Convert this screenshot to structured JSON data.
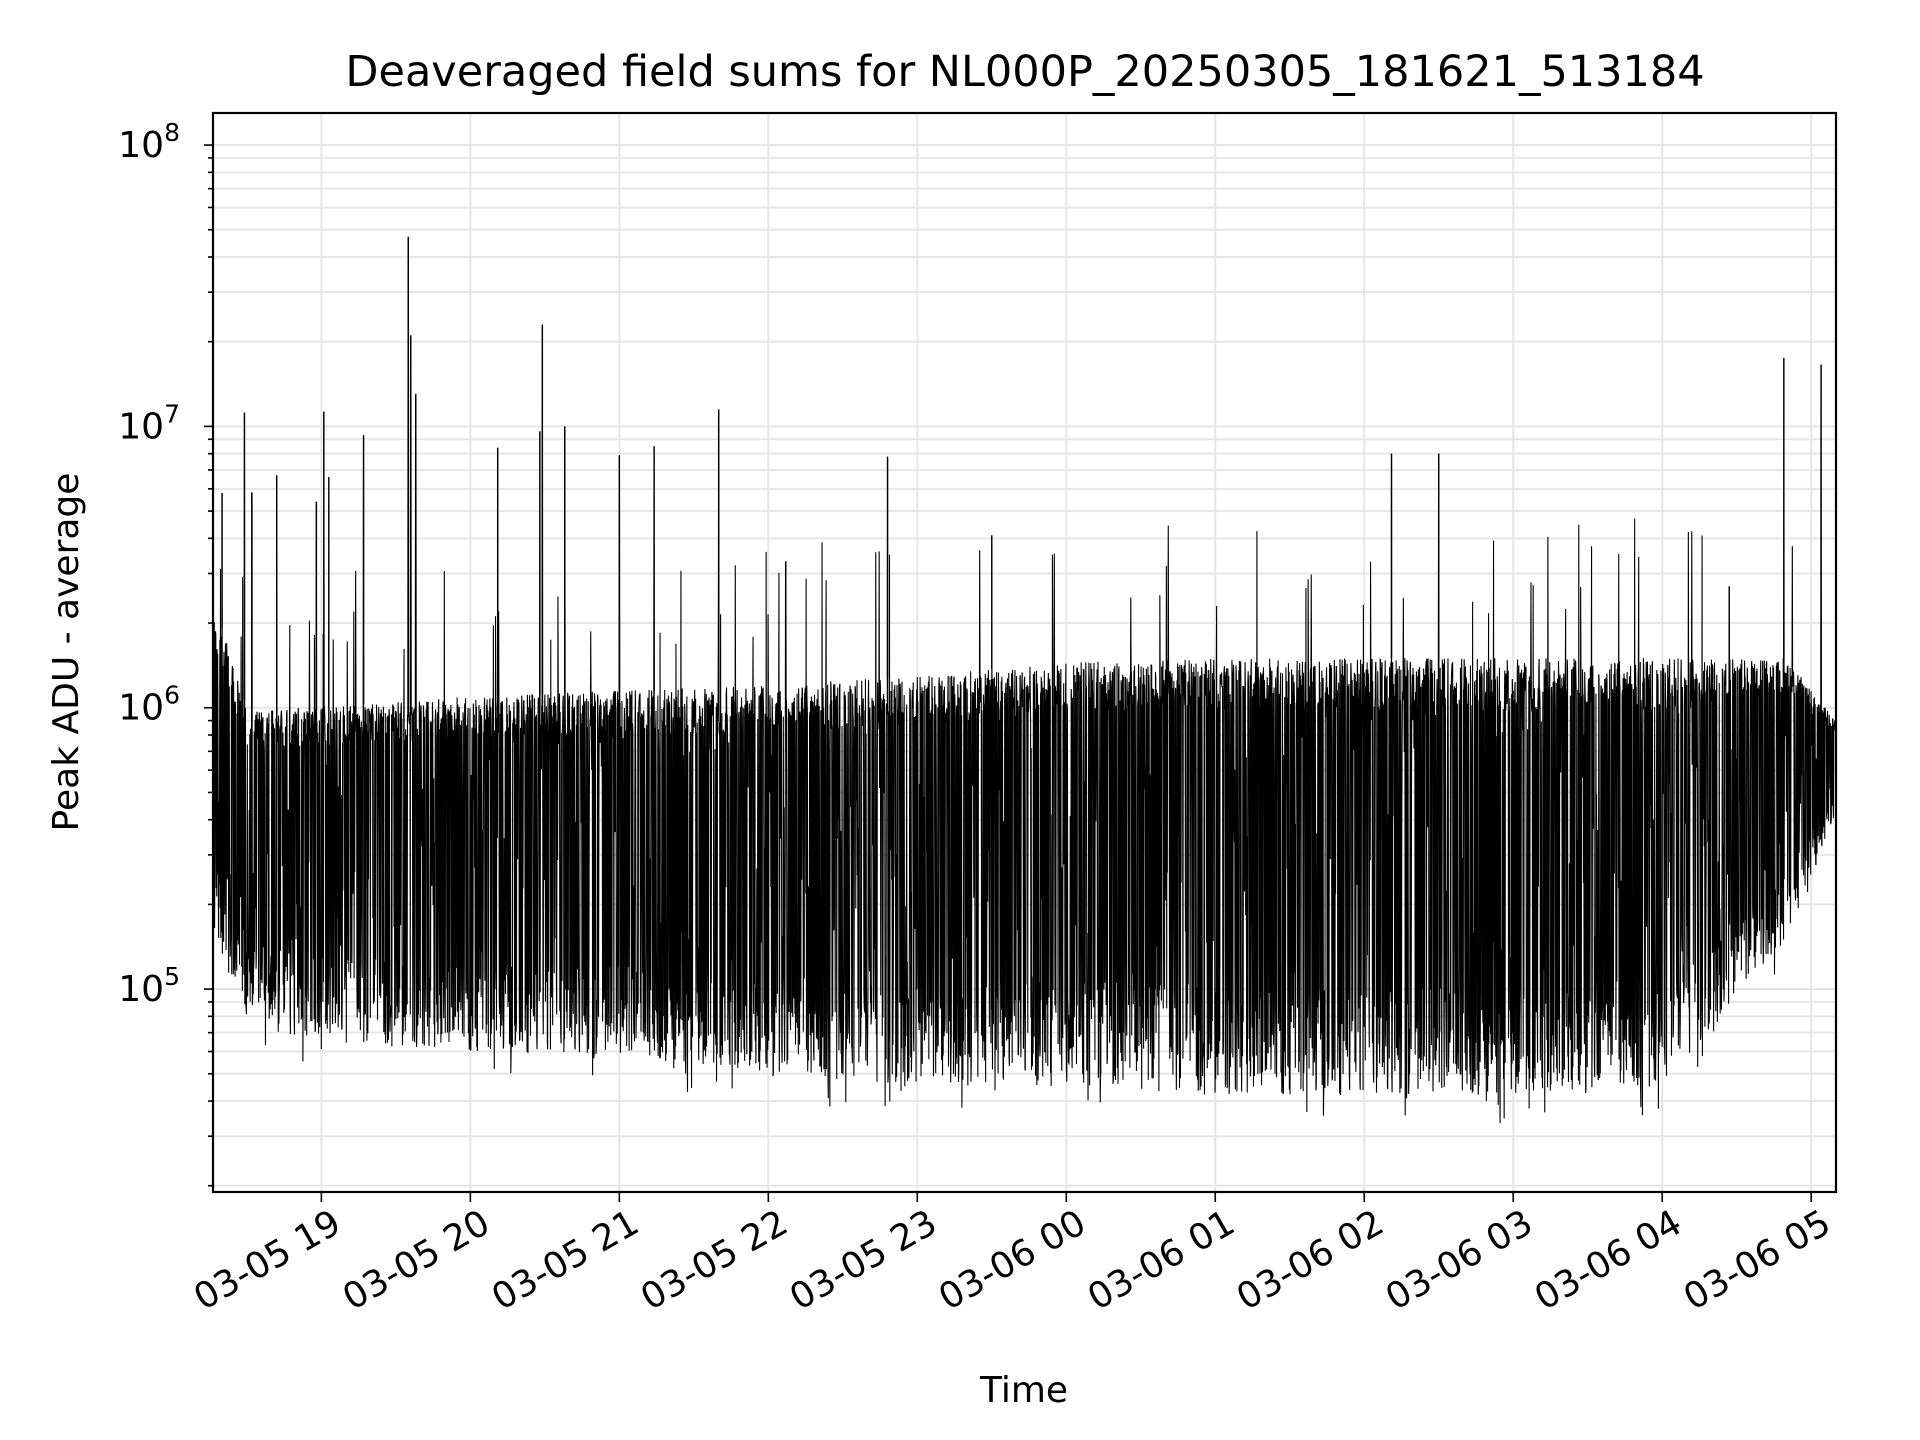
{
  "chart_data": {
    "type": "line",
    "title": "Deaveraged field sums for NL000P_20250305_181621_513184",
    "xlabel": "Time",
    "ylabel": "Peak ADU - average",
    "yscale": "log",
    "ylim": [
      19000,
      130000000
    ],
    "xlim": [
      "2025-03-05T18:16:21",
      "2025-03-06T05:10:00"
    ],
    "x_ticks": [
      {
        "t": "2025-03-05T19:00",
        "label": "03-05 19"
      },
      {
        "t": "2025-03-05T20:00",
        "label": "03-05 20"
      },
      {
        "t": "2025-03-05T21:00",
        "label": "03-05 21"
      },
      {
        "t": "2025-03-05T22:00",
        "label": "03-05 22"
      },
      {
        "t": "2025-03-05T23:00",
        "label": "03-05 23"
      },
      {
        "t": "2025-03-06T00:00",
        "label": "03-06 00"
      },
      {
        "t": "2025-03-06T01:00",
        "label": "03-06 01"
      },
      {
        "t": "2025-03-06T02:00",
        "label": "03-06 02"
      },
      {
        "t": "2025-03-06T03:00",
        "label": "03-06 03"
      },
      {
        "t": "2025-03-06T04:00",
        "label": "03-06 04"
      },
      {
        "t": "2025-03-06T05:00",
        "label": "03-06 05"
      }
    ],
    "y_ticks": [
      {
        "value": 100000,
        "mantissa": "10",
        "exp": "5"
      },
      {
        "value": 1000000,
        "mantissa": "10",
        "exp": "6"
      },
      {
        "value": 10000000,
        "mantissa": "10",
        "exp": "7"
      },
      {
        "value": 100000000,
        "mantissa": "10",
        "exp": "8"
      }
    ],
    "grid": true,
    "line_color": "#000000",
    "grid_color": "#e6e6e6",
    "band_envelope": {
      "description_unit": "Peak ADU - average",
      "points": [
        {
          "t": "2025-03-05T18:16",
          "low": 150000,
          "high": 2500000
        },
        {
          "t": "2025-03-05T18:30",
          "low": 80000,
          "high": 1000000
        },
        {
          "t": "2025-03-05T19:00",
          "low": 65000,
          "high": 1000000
        },
        {
          "t": "2025-03-05T20:00",
          "low": 60000,
          "high": 1100000
        },
        {
          "t": "2025-03-05T21:00",
          "low": 58000,
          "high": 1150000
        },
        {
          "t": "2025-03-05T22:00",
          "low": 50000,
          "high": 1200000
        },
        {
          "t": "2025-03-05T23:00",
          "low": 45000,
          "high": 1300000
        },
        {
          "t": "2025-03-06T00:00",
          "low": 45000,
          "high": 1450000
        },
        {
          "t": "2025-03-06T01:00",
          "low": 42000,
          "high": 1500000
        },
        {
          "t": "2025-03-06T02:00",
          "low": 42000,
          "high": 1500000
        },
        {
          "t": "2025-03-06T03:00",
          "low": 42000,
          "high": 1500000
        },
        {
          "t": "2025-03-06T04:00",
          "low": 45000,
          "high": 1500000
        },
        {
          "t": "2025-03-06T04:50",
          "low": 150000,
          "high": 1500000
        },
        {
          "t": "2025-03-06T05:10",
          "low": 400000,
          "high": 900000
        }
      ]
    },
    "spikes": [
      {
        "t": "2025-03-05T18:20",
        "value": 5800000
      },
      {
        "t": "2025-03-05T18:29",
        "value": 11200000
      },
      {
        "t": "2025-03-05T18:32",
        "value": 5800000
      },
      {
        "t": "2025-03-05T18:42",
        "value": 6700000
      },
      {
        "t": "2025-03-05T18:58",
        "value": 5400000
      },
      {
        "t": "2025-03-05T19:01",
        "value": 11300000
      },
      {
        "t": "2025-03-05T19:03",
        "value": 6600000
      },
      {
        "t": "2025-03-05T19:17",
        "value": 9300000
      },
      {
        "t": "2025-03-05T19:35",
        "value": 47000000
      },
      {
        "t": "2025-03-05T19:36",
        "value": 21000000
      },
      {
        "t": "2025-03-05T19:38",
        "value": 13000000
      },
      {
        "t": "2025-03-05T20:11",
        "value": 8400000
      },
      {
        "t": "2025-03-05T20:28",
        "value": 9600000
      },
      {
        "t": "2025-03-05T20:29",
        "value": 23000000
      },
      {
        "t": "2025-03-05T20:38",
        "value": 10000000
      },
      {
        "t": "2025-03-05T21:00",
        "value": 7900000
      },
      {
        "t": "2025-03-05T21:14",
        "value": 8500000
      },
      {
        "t": "2025-03-05T21:40",
        "value": 11500000
      },
      {
        "t": "2025-03-05T22:07",
        "value": 3300000
      },
      {
        "t": "2025-03-05T22:48",
        "value": 7800000
      },
      {
        "t": "2025-03-05T23:30",
        "value": 4100000
      },
      {
        "t": "2025-03-06T02:11",
        "value": 8000000
      },
      {
        "t": "2025-03-06T02:30",
        "value": 8000000
      },
      {
        "t": "2025-03-06T04:27",
        "value": 2700000
      },
      {
        "t": "2025-03-06T04:49",
        "value": 17500000
      },
      {
        "t": "2025-03-06T05:04",
        "value": 16600000
      }
    ]
  }
}
